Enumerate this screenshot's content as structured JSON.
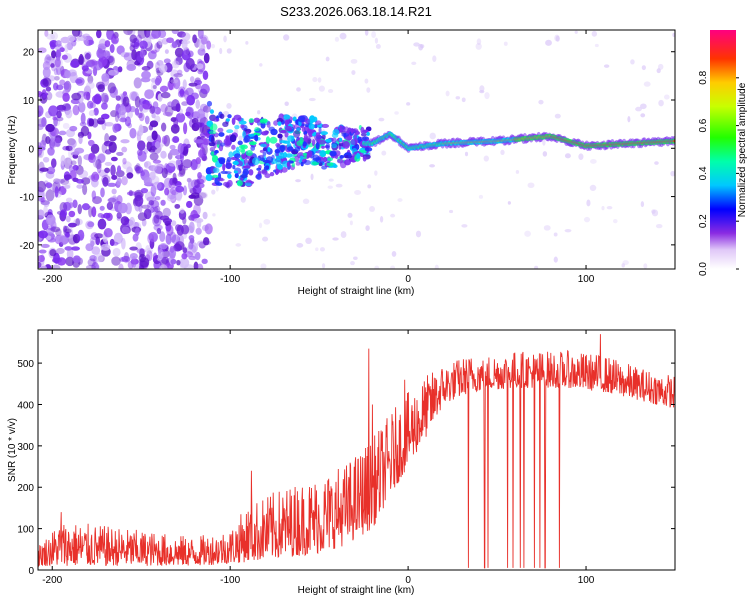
{
  "title": "S233.2026.063.18.14.R21",
  "chart_data": [
    {
      "type": "heatmap",
      "name": "spectrogram",
      "xlabel": "Height of straight line (km)",
      "ylabel": "Frequency (Hz)",
      "xlim": [
        -208,
        150
      ],
      "ylim": [
        -25,
        24.5
      ],
      "xticks": [
        -200,
        -100,
        0,
        100
      ],
      "yticks": [
        -20,
        -10,
        0,
        10,
        20
      ],
      "colorbar": {
        "label": "Normalized spectral amplitude",
        "range": [
          0,
          1
        ],
        "ticks": [
          0.0,
          0.2,
          0.4,
          0.6,
          0.8
        ]
      },
      "ridge": [
        {
          "x": -110,
          "y": 0
        },
        {
          "x": -90,
          "y": -1
        },
        {
          "x": -70,
          "y": 1
        },
        {
          "x": -55,
          "y": 2
        },
        {
          "x": -45,
          "y": 0
        },
        {
          "x": -30,
          "y": 1
        },
        {
          "x": -20,
          "y": 1
        },
        {
          "x": -10,
          "y": 3
        },
        {
          "x": 0,
          "y": 0
        },
        {
          "x": 20,
          "y": 1
        },
        {
          "x": 50,
          "y": 1.5
        },
        {
          "x": 80,
          "y": 2.5
        },
        {
          "x": 100,
          "y": 0.5
        },
        {
          "x": 150,
          "y": 1.5
        }
      ]
    },
    {
      "type": "line",
      "name": "snr",
      "xlabel": "Height of straight line (km)",
      "ylabel": "SNR (10 * v/v)",
      "xlim": [
        -208,
        150
      ],
      "ylim": [
        0,
        580
      ],
      "xticks": [
        -200,
        -100,
        0,
        100
      ],
      "yticks": [
        0,
        100,
        200,
        300,
        400,
        500
      ],
      "color": "#e8302a",
      "envelope": [
        {
          "x": -208,
          "low": 10,
          "high": 60
        },
        {
          "x": -195,
          "low": 10,
          "high": 120
        },
        {
          "x": -120,
          "low": 10,
          "high": 80
        },
        {
          "x": -100,
          "low": 15,
          "high": 100
        },
        {
          "x": -90,
          "low": 20,
          "high": 160
        },
        {
          "x": -70,
          "low": 30,
          "high": 200
        },
        {
          "x": -50,
          "low": 40,
          "high": 230
        },
        {
          "x": -35,
          "low": 60,
          "high": 260
        },
        {
          "x": -20,
          "low": 100,
          "high": 320
        },
        {
          "x": -10,
          "low": 180,
          "high": 380
        },
        {
          "x": 0,
          "low": 250,
          "high": 430
        },
        {
          "x": 10,
          "low": 320,
          "high": 470
        },
        {
          "x": 20,
          "low": 400,
          "high": 500
        },
        {
          "x": 35,
          "low": 430,
          "high": 520
        },
        {
          "x": 60,
          "low": 440,
          "high": 530
        },
        {
          "x": 90,
          "low": 440,
          "high": 530
        },
        {
          "x": 110,
          "low": 430,
          "high": 520
        },
        {
          "x": 130,
          "low": 410,
          "high": 490
        },
        {
          "x": 150,
          "low": 390,
          "high": 470
        }
      ],
      "spikes": [
        {
          "x": -195,
          "y": 140
        },
        {
          "x": -88,
          "y": 240
        },
        {
          "x": -22,
          "y": 535
        },
        {
          "x": -20,
          "y": 400
        },
        {
          "x": -2,
          "y": 460
        },
        {
          "x": 16,
          "y": 460
        },
        {
          "x": 108,
          "y": 570
        }
      ],
      "drops": [
        {
          "x": 34,
          "y": 5
        },
        {
          "x": 43,
          "y": 5
        },
        {
          "x": 45,
          "y": 5
        },
        {
          "x": 56,
          "y": 5
        },
        {
          "x": 59,
          "y": 5
        },
        {
          "x": 63,
          "y": 5
        },
        {
          "x": 65,
          "y": 5
        },
        {
          "x": 71,
          "y": 5
        },
        {
          "x": 74,
          "y": 5
        },
        {
          "x": 77,
          "y": 5
        },
        {
          "x": 85,
          "y": 5
        }
      ]
    }
  ]
}
